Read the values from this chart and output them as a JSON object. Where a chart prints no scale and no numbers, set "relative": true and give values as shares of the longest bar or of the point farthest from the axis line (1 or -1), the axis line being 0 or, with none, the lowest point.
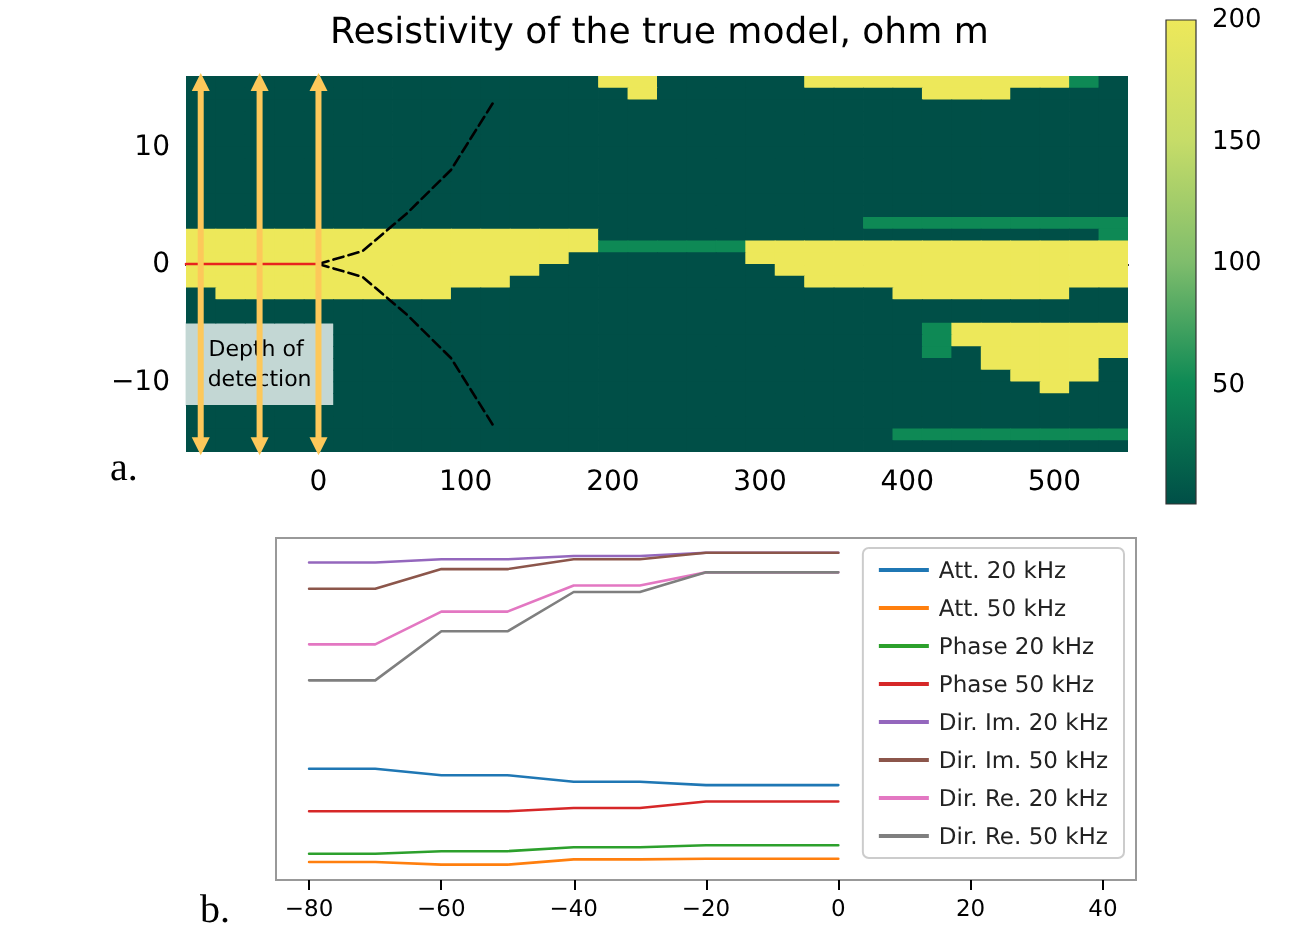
{
  "chart_data": [
    {
      "type": "heatmap",
      "title": "Resistivity of the true model, ohm m",
      "xlim": [
        -90,
        550
      ],
      "ylim": [
        -16,
        16
      ],
      "xticks": [
        0,
        100,
        200,
        300,
        400,
        500
      ],
      "yticks": [
        -10,
        0,
        10
      ],
      "clim": [
        1,
        200
      ],
      "cticks": [
        50,
        100,
        150,
        200
      ],
      "cells": [
        [
          1,
          1,
          1,
          1,
          1,
          1,
          1,
          1,
          1,
          1,
          1,
          1,
          1,
          1,
          200,
          200,
          1,
          1,
          1,
          1,
          1,
          200,
          200,
          200,
          200,
          200,
          200,
          200,
          200,
          200,
          50,
          1
        ],
        [
          1,
          1,
          1,
          1,
          1,
          1,
          1,
          1,
          1,
          1,
          1,
          1,
          1,
          1,
          1,
          200,
          1,
          1,
          1,
          1,
          1,
          1,
          1,
          1,
          1,
          200,
          200,
          200,
          1,
          1,
          1,
          1
        ],
        [
          1,
          1,
          1,
          1,
          1,
          1,
          1,
          1,
          1,
          1,
          1,
          1,
          1,
          1,
          1,
          1,
          1,
          1,
          1,
          1,
          1,
          1,
          1,
          1,
          1,
          1,
          1,
          1,
          1,
          1,
          1,
          1
        ],
        [
          1,
          1,
          1,
          1,
          1,
          1,
          1,
          1,
          1,
          1,
          1,
          1,
          1,
          1,
          1,
          1,
          1,
          1,
          1,
          1,
          1,
          1,
          1,
          1,
          1,
          1,
          1,
          1,
          1,
          1,
          1,
          1
        ],
        [
          1,
          1,
          1,
          1,
          1,
          1,
          1,
          1,
          1,
          1,
          1,
          1,
          1,
          1,
          1,
          1,
          1,
          1,
          1,
          1,
          1,
          1,
          1,
          1,
          1,
          1,
          1,
          1,
          1,
          1,
          1,
          1
        ],
        [
          1,
          1,
          1,
          1,
          1,
          1,
          1,
          1,
          1,
          1,
          1,
          1,
          1,
          1,
          1,
          1,
          1,
          1,
          1,
          1,
          1,
          1,
          1,
          1,
          1,
          1,
          1,
          1,
          1,
          1,
          1,
          1
        ],
        [
          1,
          1,
          1,
          1,
          1,
          1,
          1,
          1,
          1,
          1,
          1,
          1,
          1,
          1,
          1,
          1,
          1,
          1,
          1,
          1,
          1,
          1,
          1,
          1,
          1,
          1,
          1,
          1,
          1,
          1,
          1,
          1
        ],
        [
          1,
          1,
          1,
          1,
          1,
          1,
          1,
          1,
          1,
          1,
          1,
          1,
          1,
          1,
          1,
          1,
          1,
          1,
          1,
          1,
          1,
          1,
          1,
          1,
          1,
          1,
          1,
          1,
          1,
          1,
          1,
          1
        ],
        [
          1,
          1,
          1,
          1,
          1,
          1,
          1,
          1,
          1,
          1,
          1,
          1,
          1,
          1,
          1,
          1,
          1,
          1,
          1,
          1,
          1,
          1,
          1,
          1,
          1,
          1,
          1,
          1,
          1,
          1,
          1,
          1
        ],
        [
          1,
          1,
          1,
          1,
          1,
          1,
          1,
          1,
          1,
          1,
          1,
          1,
          1,
          1,
          1,
          1,
          1,
          1,
          1,
          1,
          1,
          1,
          1,
          1,
          1,
          1,
          1,
          1,
          1,
          1,
          1,
          1
        ],
        [
          1,
          1,
          1,
          1,
          1,
          1,
          1,
          1,
          1,
          1,
          1,
          1,
          1,
          1,
          1,
          1,
          1,
          1,
          1,
          1,
          1,
          1,
          1,
          1,
          1,
          1,
          1,
          1,
          1,
          1,
          1,
          1
        ],
        [
          1,
          1,
          1,
          1,
          1,
          1,
          1,
          1,
          1,
          1,
          1,
          1,
          1,
          1,
          1,
          1,
          1,
          1,
          1,
          1,
          1,
          1,
          1,
          1,
          1,
          1,
          1,
          1,
          1,
          1,
          1,
          1
        ],
        [
          1,
          1,
          1,
          1,
          1,
          1,
          1,
          1,
          1,
          1,
          1,
          1,
          1,
          1,
          1,
          1,
          1,
          1,
          1,
          1,
          1,
          1,
          1,
          50,
          50,
          50,
          50,
          50,
          50,
          50,
          50,
          50
        ],
        [
          200,
          200,
          200,
          200,
          200,
          200,
          200,
          200,
          200,
          200,
          200,
          200,
          200,
          200,
          1,
          1,
          1,
          1,
          1,
          1,
          1,
          1,
          1,
          1,
          1,
          1,
          1,
          1,
          1,
          1,
          1,
          50
        ],
        [
          200,
          200,
          200,
          200,
          200,
          200,
          200,
          200,
          200,
          200,
          200,
          200,
          200,
          200,
          50,
          50,
          50,
          50,
          50,
          200,
          200,
          200,
          200,
          200,
          200,
          200,
          200,
          200,
          200,
          200,
          200,
          200
        ],
        [
          200,
          200,
          200,
          200,
          200,
          200,
          200,
          200,
          200,
          200,
          200,
          200,
          200,
          1,
          1,
          1,
          1,
          1,
          1,
          200,
          200,
          200,
          200,
          200,
          200,
          200,
          200,
          200,
          200,
          200,
          200,
          200
        ],
        [
          200,
          200,
          200,
          200,
          200,
          200,
          200,
          200,
          200,
          200,
          200,
          200,
          1,
          1,
          1,
          1,
          1,
          1,
          1,
          1,
          200,
          200,
          200,
          200,
          200,
          200,
          200,
          200,
          200,
          200,
          200,
          200
        ],
        [
          200,
          200,
          200,
          200,
          200,
          200,
          200,
          200,
          200,
          200,
          200,
          1,
          1,
          1,
          1,
          1,
          1,
          1,
          1,
          1,
          1,
          200,
          200,
          200,
          200,
          200,
          200,
          200,
          200,
          200,
          200,
          200
        ],
        [
          1,
          200,
          200,
          200,
          200,
          200,
          200,
          200,
          200,
          1,
          1,
          1,
          1,
          1,
          1,
          1,
          1,
          1,
          1,
          1,
          1,
          1,
          1,
          1,
          200,
          200,
          200,
          200,
          200,
          200,
          1,
          1
        ],
        [
          1,
          1,
          1,
          1,
          1,
          1,
          1,
          1,
          1,
          1,
          1,
          1,
          1,
          1,
          1,
          1,
          1,
          1,
          1,
          1,
          1,
          1,
          1,
          1,
          1,
          1,
          1,
          1,
          1,
          1,
          1,
          1
        ],
        [
          1,
          1,
          1,
          1,
          1,
          1,
          1,
          1,
          1,
          1,
          1,
          1,
          1,
          1,
          1,
          1,
          1,
          1,
          1,
          1,
          1,
          1,
          1,
          1,
          1,
          1,
          1,
          1,
          1,
          1,
          1,
          1
        ],
        [
          null,
          null,
          null,
          null,
          null,
          1,
          1,
          1,
          1,
          1,
          1,
          1,
          1,
          1,
          1,
          1,
          1,
          1,
          1,
          1,
          1,
          1,
          1,
          1,
          1,
          50,
          200,
          200,
          200,
          200,
          200,
          200
        ],
        [
          null,
          null,
          null,
          null,
          null,
          1,
          1,
          1,
          1,
          1,
          1,
          1,
          1,
          1,
          1,
          1,
          1,
          1,
          1,
          1,
          1,
          1,
          1,
          1,
          1,
          50,
          200,
          200,
          200,
          200,
          200,
          200
        ],
        [
          null,
          null,
          null,
          null,
          null,
          1,
          1,
          1,
          1,
          1,
          1,
          1,
          1,
          1,
          1,
          1,
          1,
          1,
          1,
          1,
          1,
          1,
          1,
          1,
          1,
          50,
          1,
          200,
          200,
          200,
          200,
          200
        ],
        [
          null,
          null,
          null,
          null,
          null,
          1,
          1,
          1,
          1,
          1,
          1,
          1,
          1,
          1,
          1,
          1,
          1,
          1,
          1,
          1,
          1,
          1,
          1,
          1,
          1,
          1,
          1,
          200,
          200,
          200,
          200,
          1
        ],
        [
          null,
          null,
          null,
          null,
          null,
          1,
          1,
          1,
          1,
          1,
          1,
          1,
          1,
          1,
          1,
          1,
          1,
          1,
          1,
          1,
          1,
          1,
          1,
          1,
          1,
          1,
          1,
          1,
          200,
          200,
          200,
          1
        ],
        [
          null,
          null,
          null,
          null,
          null,
          1,
          1,
          1,
          1,
          1,
          1,
          1,
          1,
          1,
          1,
          1,
          1,
          1,
          1,
          1,
          1,
          1,
          1,
          1,
          1,
          1,
          1,
          1,
          1,
          200,
          1,
          1
        ],
        [
          null,
          null,
          null,
          null,
          null,
          1,
          1,
          1,
          1,
          1,
          1,
          1,
          1,
          1,
          1,
          1,
          1,
          1,
          1,
          1,
          1,
          1,
          1,
          1,
          1,
          1,
          1,
          1,
          1,
          1,
          1,
          1
        ],
        [
          1,
          1,
          1,
          1,
          1,
          1,
          1,
          1,
          1,
          1,
          1,
          1,
          1,
          1,
          1,
          1,
          1,
          1,
          1,
          1,
          1,
          1,
          1,
          1,
          1,
          1,
          1,
          1,
          1,
          1,
          1,
          1
        ],
        [
          1,
          1,
          1,
          1,
          1,
          1,
          1,
          1,
          1,
          1,
          1,
          1,
          1,
          1,
          1,
          1,
          1,
          1,
          1,
          1,
          1,
          1,
          1,
          1,
          1,
          1,
          1,
          1,
          1,
          1,
          1,
          1
        ],
        [
          1,
          1,
          1,
          1,
          1,
          1,
          1,
          1,
          1,
          1,
          1,
          1,
          1,
          1,
          1,
          1,
          1,
          1,
          1,
          1,
          1,
          1,
          1,
          1,
          50,
          50,
          50,
          50,
          50,
          50,
          50,
          50
        ],
        [
          1,
          1,
          1,
          1,
          1,
          1,
          1,
          1,
          1,
          1,
          1,
          1,
          1,
          1,
          1,
          1,
          1,
          1,
          1,
          1,
          1,
          1,
          1,
          1,
          1,
          1,
          1,
          1,
          1,
          1,
          1,
          1
        ]
      ],
      "series": [
        {
          "type": "line",
          "color": "#e8231e",
          "x": [
            -90,
            0
          ],
          "values": [
            0,
            0
          ],
          "marker": "none",
          "line_style": "solid"
        },
        {
          "type": "line",
          "color": "#000000",
          "x": [
            0,
            30,
            60,
            90,
            120
          ],
          "values": [
            0,
            1.1,
            4.3,
            8,
            14
          ],
          "marker": "none",
          "line_style": "dashed"
        },
        {
          "type": "line",
          "color": "#000000",
          "x": [
            0,
            30,
            60,
            90,
            120
          ],
          "values": [
            0,
            -1.1,
            -4.3,
            -8,
            -14
          ],
          "marker": "none",
          "line_style": "dashed"
        },
        {
          "type": "line",
          "color": "#fdc85a",
          "x": [
            -80,
            -80
          ],
          "values": [
            -15.5,
            15.5
          ],
          "marker": "triangle",
          "line_style": "solid"
        },
        {
          "type": "line",
          "color": "#fdc85a",
          "x": [
            -40,
            -40
          ],
          "values": [
            -15.5,
            15.5
          ],
          "marker": "triangle",
          "line_style": "solid"
        },
        {
          "type": "line",
          "color": "#fdc85a",
          "x": [
            0,
            0
          ],
          "values": [
            -15.5,
            15.5
          ],
          "marker": "triangle",
          "line_style": "solid"
        }
      ],
      "annotations": [
        {
          "text": "Depth of detection",
          "x": -40,
          "y": -8.5
        },
        "a."
      ]
    },
    {
      "type": "line",
      "relative": true,
      "x": [
        -80,
        -70,
        -60,
        -50,
        -40,
        -30,
        -20,
        -10,
        0
      ],
      "xlim": [
        -85,
        45
      ],
      "xticks": [
        -80,
        -60,
        -40,
        -20,
        0,
        20,
        40
      ],
      "legend": "top right",
      "series": [
        {
          "name": "Att. 20 kHz",
          "color": "#1f77b4",
          "values": [
            0.34,
            0.34,
            0.32,
            0.32,
            0.3,
            0.3,
            0.29,
            0.29,
            0.29
          ]
        },
        {
          "name": "Att. 50 kHz",
          "color": "#ff7f0e",
          "values": [
            0.055,
            0.055,
            0.047,
            0.047,
            0.063,
            0.063,
            0.065,
            0.065,
            0.065
          ]
        },
        {
          "name": "Phase 20 kHz",
          "color": "#2ca02c",
          "values": [
            0.08,
            0.08,
            0.088,
            0.088,
            0.1,
            0.1,
            0.106,
            0.106,
            0.106
          ]
        },
        {
          "name": "Phase 50 kHz",
          "color": "#d62728",
          "values": [
            0.21,
            0.21,
            0.21,
            0.21,
            0.22,
            0.22,
            0.24,
            0.24,
            0.24
          ]
        },
        {
          "name": "Dir. Im. 20 kHz",
          "color": "#9467bd",
          "values": [
            0.97,
            0.97,
            0.98,
            0.98,
            0.99,
            0.99,
            1,
            1,
            1
          ]
        },
        {
          "name": "Dir. Im. 50 kHz",
          "color": "#8c564b",
          "values": [
            0.89,
            0.89,
            0.95,
            0.95,
            0.98,
            0.98,
            1,
            1,
            1
          ]
        },
        {
          "name": "Dir. Re. 20 kHz",
          "color": "#e377c2",
          "values": [
            0.72,
            0.72,
            0.82,
            0.82,
            0.9,
            0.9,
            0.94,
            0.94,
            0.94
          ]
        },
        {
          "name": "Dir. Re. 50 kHz",
          "color": "#7f7f7f",
          "values": [
            0.61,
            0.61,
            0.76,
            0.76,
            0.88,
            0.88,
            0.94,
            0.94,
            0.94
          ]
        }
      ],
      "annotations": [
        "b."
      ]
    }
  ]
}
